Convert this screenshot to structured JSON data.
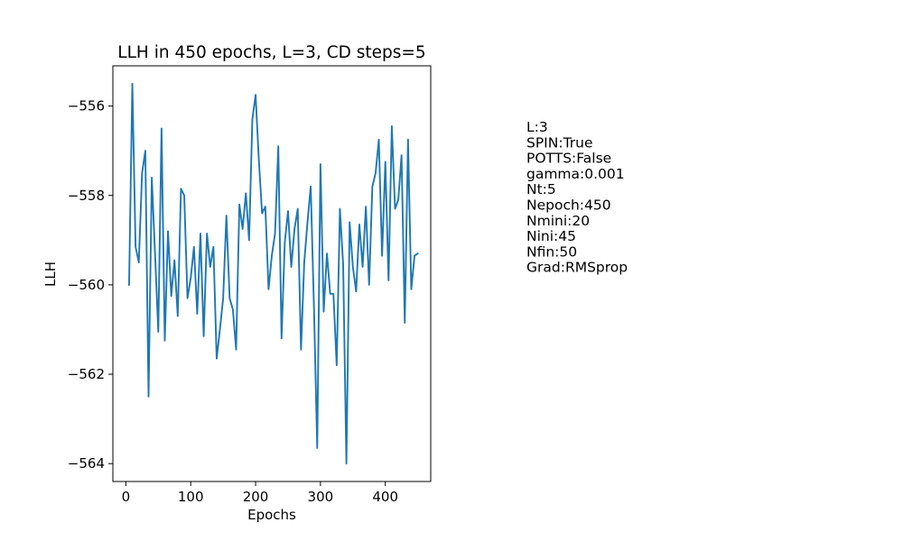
{
  "chart_data": {
    "type": "line",
    "title": "LLH in 450 epochs, L=3, CD steps=5",
    "xlabel": "Epochs",
    "ylabel": "LLH",
    "xlim": [
      -20,
      470
    ],
    "ylim": [
      -564.4,
      -555.1
    ],
    "xticks": [
      0,
      100,
      200,
      300,
      400
    ],
    "yticks": [
      -556,
      -558,
      -560,
      -562,
      -564
    ],
    "xtick_labels": [
      "0",
      "100",
      "200",
      "300",
      "400"
    ],
    "ytick_labels": [
      "−556",
      "−558",
      "−560",
      "−562",
      "−564"
    ],
    "grid": false,
    "line_color": "#1f77b4",
    "series": [
      {
        "x": [
          5,
          10,
          15,
          20,
          25,
          30,
          35,
          40,
          45,
          50,
          55,
          60,
          65,
          70,
          75,
          80,
          85,
          90,
          95,
          100,
          105,
          110,
          115,
          120,
          125,
          130,
          135,
          140,
          145,
          150,
          155,
          160,
          165,
          170,
          175,
          180,
          185,
          190,
          195,
          200,
          205,
          210,
          215,
          220,
          225,
          230,
          235,
          240,
          245,
          250,
          255,
          260,
          265,
          270,
          275,
          280,
          285,
          290,
          295,
          300,
          305,
          310,
          315,
          320,
          325,
          330,
          335,
          340,
          345,
          350,
          355,
          360,
          365,
          370,
          375,
          380,
          385,
          390,
          395,
          400,
          405,
          410,
          415,
          420,
          425,
          430,
          435,
          440,
          445,
          450
        ],
        "y": [
          -560.0,
          -555.5,
          -559.15,
          -559.5,
          -557.5,
          -557.0,
          -562.5,
          -557.6,
          -559.3,
          -561.05,
          -556.5,
          -561.25,
          -558.8,
          -560.25,
          -559.45,
          -560.7,
          -557.85,
          -558.0,
          -560.3,
          -559.85,
          -559.15,
          -560.65,
          -558.85,
          -561.15,
          -558.85,
          -559.6,
          -559.15,
          -561.65,
          -561.0,
          -560.3,
          -558.45,
          -560.3,
          -560.55,
          -561.45,
          -558.2,
          -558.75,
          -557.95,
          -559.0,
          -556.3,
          -555.75,
          -557.2,
          -558.4,
          -558.25,
          -560.1,
          -559.35,
          -558.85,
          -556.9,
          -561.2,
          -559.05,
          -558.35,
          -559.6,
          -558.75,
          -558.3,
          -561.45,
          -559.5,
          -558.6,
          -557.8,
          -560.5,
          -563.65,
          -557.3,
          -560.6,
          -559.3,
          -560.2,
          -560.2,
          -561.8,
          -558.3,
          -559.55,
          -564.0,
          -558.6,
          -559.6,
          -560.15,
          -558.65,
          -559.6,
          -558.25,
          -560.0,
          -557.8,
          -557.5,
          -556.75,
          -559.35,
          -557.25,
          -559.9,
          -556.45,
          -558.3,
          -558.1,
          -557.1,
          -560.85,
          -556.75,
          -560.1,
          -559.35,
          -559.3
        ]
      }
    ]
  },
  "params": [
    "L:3",
    "SPIN:True",
    "POTTS:False",
    "gamma:0.001",
    "Nt:5",
    "Nepoch:450",
    "Nmini:20",
    "Nini:45",
    "Nfin:50",
    "Grad:RMSprop"
  ]
}
